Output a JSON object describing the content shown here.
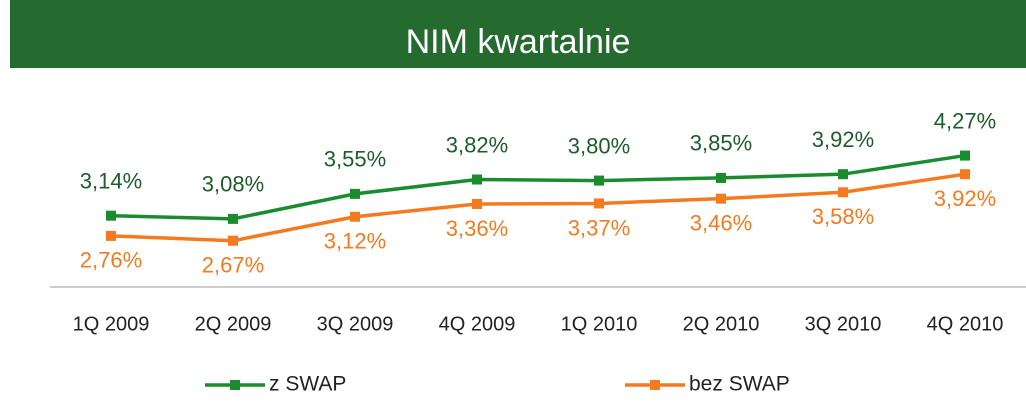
{
  "chart_data": {
    "type": "line",
    "title": "NIM kwartalnie",
    "categories": [
      "1Q 2009",
      "2Q 2009",
      "3Q 2009",
      "4Q 2009",
      "1Q 2010",
      "2Q 2010",
      "3Q 2010",
      "4Q 2010"
    ],
    "series": [
      {
        "name": "z SWAP",
        "color": "#1a8c2e",
        "values": [
          3.14,
          3.08,
          3.55,
          3.82,
          3.8,
          3.85,
          3.92,
          4.27
        ],
        "value_labels": [
          "3,14%",
          "3,08%",
          "3,55%",
          "3,82%",
          "3,80%",
          "3,85%",
          "3,92%",
          "4,27%"
        ]
      },
      {
        "name": "bez SWAP",
        "color": "#f47a20",
        "values": [
          2.76,
          2.67,
          3.12,
          3.36,
          3.37,
          3.46,
          3.58,
          3.92
        ],
        "value_labels": [
          "2,76%",
          "2,67%",
          "3,12%",
          "3,36%",
          "3,37%",
          "3,46%",
          "3,58%",
          "3,92%"
        ]
      }
    ],
    "ylim": [
      1.8,
      4.6
    ],
    "legend": "bottom"
  }
}
